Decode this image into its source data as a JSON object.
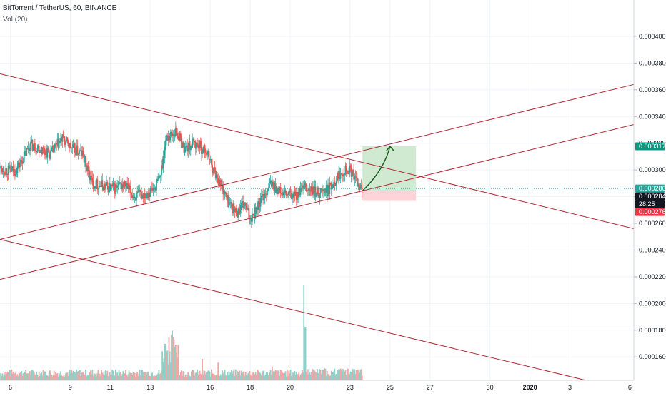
{
  "chart_data": {
    "type": "candlestick",
    "title": "BitTorrent / TetherUS, 60, BINANCE",
    "subtitle": "Vol (20)",
    "y_axis": {
      "ticks": [
        "0.0004000",
        "0.0003800",
        "0.0003600",
        "0.0003400",
        "0.0003200",
        "0.0003000",
        "0.0002800",
        "0.0002600",
        "0.0002400",
        "0.0002200",
        "0.0002000",
        "0.0001800",
        "0.0001600"
      ],
      "range": [
        0.0001425,
        0.0004272
      ]
    },
    "x_axis": {
      "ticks": [
        "6",
        "9",
        "11",
        "13",
        "16",
        "18",
        "20",
        "23",
        "25",
        "27",
        "30",
        "2020",
        "3",
        "6"
      ],
      "tick_days": [
        6,
        9,
        11,
        13,
        16,
        18,
        20,
        23,
        25,
        27,
        30,
        32,
        34,
        37
      ],
      "range_days": [
        5.48,
        37.2
      ]
    },
    "price_labels": [
      {
        "text": "0.0003177",
        "value": 0.0003177,
        "color": "#089981"
      },
      {
        "text": "0.0002861",
        "value": 0.0002861,
        "color": "#26a69a"
      },
      {
        "text": "28:25",
        "value": 0.0002808,
        "color": "#131722"
      },
      {
        "text": "0.0002843",
        "value": 0.0002843,
        "color": "#131722"
      },
      {
        "text": "0.0002768",
        "value": 0.0002768,
        "color": "#f23645"
      }
    ],
    "current_price": 0.0002861,
    "candle_anchors": [
      [
        5.5,
        0.000301
      ],
      [
        6.2,
        0.000299
      ],
      [
        6.5,
        0.000305
      ],
      [
        7.0,
        0.000319
      ],
      [
        7.5,
        0.000316
      ],
      [
        8.0,
        0.000312
      ],
      [
        8.6,
        0.000323
      ],
      [
        9.1,
        0.000316
      ],
      [
        9.6,
        0.000312
      ],
      [
        10.1,
        0.00029
      ],
      [
        10.7,
        0.000288
      ],
      [
        11.2,
        0.000286
      ],
      [
        11.7,
        0.000289
      ],
      [
        12.2,
        0.00028
      ],
      [
        12.7,
        0.000282
      ],
      [
        13.2,
        0.000286
      ],
      [
        13.5,
        0.000295
      ],
      [
        13.8,
        0.000324
      ],
      [
        14.3,
        0.000329
      ],
      [
        14.7,
        0.000316
      ],
      [
        15.2,
        0.00032
      ],
      [
        15.8,
        0.000314
      ],
      [
        16.2,
        0.000299
      ],
      [
        16.5,
        0.00029
      ],
      [
        16.9,
        0.000276
      ],
      [
        17.3,
        0.000268
      ],
      [
        17.7,
        0.000274
      ],
      [
        18.0,
        0.000264
      ],
      [
        18.5,
        0.000276
      ],
      [
        19.0,
        0.00029
      ],
      [
        19.6,
        0.000282
      ],
      [
        20.2,
        0.00028
      ],
      [
        20.7,
        0.000286
      ],
      [
        21.3,
        0.000283
      ],
      [
        21.9,
        0.000285
      ],
      [
        22.4,
        0.000296
      ],
      [
        22.8,
        0.000302
      ],
      [
        23.1,
        0.000298
      ],
      [
        23.4,
        0.000288
      ],
      [
        23.62,
        0.000285
      ]
    ],
    "trendlines": [
      {
        "from": [
          5.48,
          0.000372
        ],
        "to": [
          37.2,
          0.000256
        ],
        "color": "#b22833"
      },
      {
        "from": [
          5.48,
          0.000248
        ],
        "to": [
          37.2,
          0.000364
        ],
        "color": "#b22833"
      },
      {
        "from": [
          5.48,
          0.000218
        ],
        "to": [
          37.2,
          0.000334
        ],
        "color": "#b22833"
      },
      {
        "from": [
          5.48,
          0.000248
        ],
        "to": [
          34.8,
          0.0001425
        ],
        "color": "#b22833"
      }
    ],
    "position": {
      "start_day": 23.62,
      "end_day": 26.3,
      "entry": 0.0002843,
      "target": 0.0003177,
      "stop": 0.0002768,
      "profit_color": "#c8e6c9",
      "loss_color": "#ffcdd2"
    },
    "projection": [
      [
        23.62,
        0.0002843
      ],
      [
        24.7,
        0.0003
      ],
      [
        25.0,
        0.0003177
      ]
    ],
    "volume": {
      "up_color": "#8fd0c8",
      "down_color": "#f4a5a5",
      "max_value": 100,
      "spikes": [
        {
          "day": 13.75,
          "value": 38
        },
        {
          "day": 13.95,
          "value": 45
        },
        {
          "day": 14.1,
          "value": 52
        },
        {
          "day": 14.3,
          "value": 25
        },
        {
          "day": 15.6,
          "value": 22
        },
        {
          "day": 16.4,
          "value": 18
        },
        {
          "day": 20.7,
          "value": 100
        },
        {
          "day": 20.75,
          "value": 56
        },
        {
          "day": 19.1,
          "value": 14
        }
      ]
    },
    "colors": {
      "up": "#26a69a",
      "down": "#ef5350",
      "trendline": "#b22833",
      "grid": "#f0f3fa",
      "axis_text": "#131722"
    }
  }
}
